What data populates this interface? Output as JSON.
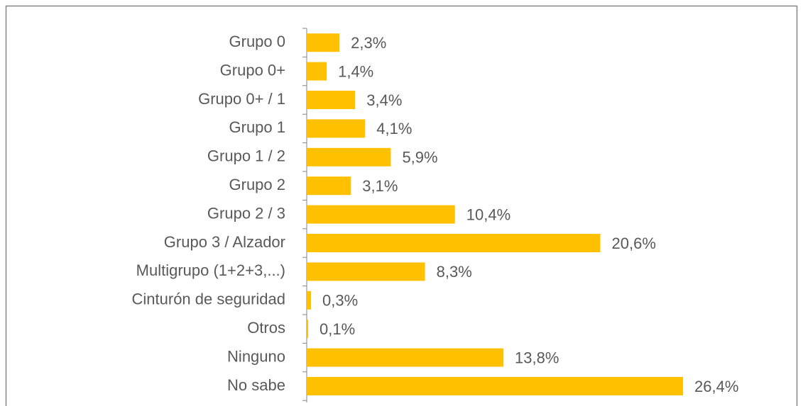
{
  "chart_data": {
    "type": "bar",
    "categories": [
      "Grupo 0",
      "Grupo 0+",
      "Grupo 0+ / 1",
      "Grupo 1",
      "Grupo 1 / 2",
      "Grupo 2",
      "Grupo 2 / 3",
      "Grupo 3 / Alzador",
      "Multigrupo (1+2+3,...)",
      "Cinturón de seguridad",
      "Otros",
      "Ninguno",
      "No sabe"
    ],
    "values": [
      2.3,
      1.4,
      3.4,
      4.1,
      5.9,
      3.1,
      10.4,
      20.6,
      8.3,
      0.3,
      0.1,
      13.8,
      26.4
    ],
    "value_labels": [
      "2,3%",
      "1,4%",
      "3,4%",
      "4,1%",
      "5,9%",
      "3,1%",
      "10,4%",
      "20,6%",
      "8,3%",
      "0,3%",
      "0,1%",
      "13,8%",
      "26,4%"
    ],
    "color": "#ffc000"
  }
}
